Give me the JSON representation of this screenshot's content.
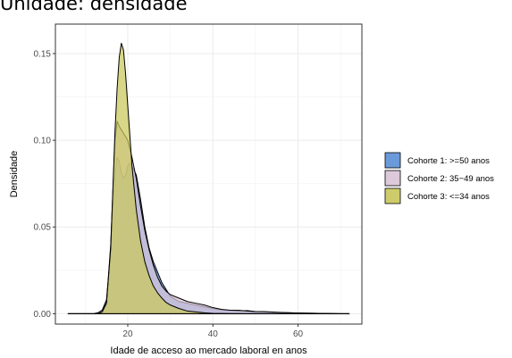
{
  "chart_data": {
    "type": "area",
    "title": "Unidade: densidade",
    "xlabel": "Idade de acceso ao mercado laboral en anos",
    "ylabel": "Densidade",
    "xlim": [
      3,
      75
    ],
    "ylim": [
      -0.006,
      0.167
    ],
    "x_ticks": [
      20,
      40,
      60
    ],
    "y_ticks": [
      0.0,
      0.05,
      0.1,
      0.15
    ],
    "y_tick_labels": [
      "0.00",
      "0.05",
      "0.10",
      "0.15"
    ],
    "grid": true,
    "legend_position": "right",
    "series": [
      {
        "name": "Cohorte 1: >=50 anos",
        "color": "#5b8fd6",
        "points": [
          [
            6,
            0
          ],
          [
            12,
            0
          ],
          [
            13,
            0.0005
          ],
          [
            14,
            0.002
          ],
          [
            15,
            0.008
          ],
          [
            16,
            0.035
          ],
          [
            16.5,
            0.06
          ],
          [
            17,
            0.08
          ],
          [
            17.5,
            0.09
          ],
          [
            18,
            0.088
          ],
          [
            18.5,
            0.081
          ],
          [
            19,
            0.078
          ],
          [
            19.5,
            0.08
          ],
          [
            20,
            0.085
          ],
          [
            20.5,
            0.087
          ],
          [
            21,
            0.085
          ],
          [
            22,
            0.08
          ],
          [
            23,
            0.066
          ],
          [
            24,
            0.05
          ],
          [
            25,
            0.038
          ],
          [
            26,
            0.03
          ],
          [
            27,
            0.024
          ],
          [
            28,
            0.018
          ],
          [
            29,
            0.014
          ],
          [
            30,
            0.01
          ],
          [
            32,
            0.007
          ],
          [
            34,
            0.006
          ],
          [
            36,
            0.005
          ],
          [
            38,
            0.004
          ],
          [
            40,
            0.003
          ],
          [
            42,
            0.0022
          ],
          [
            44,
            0.002
          ],
          [
            46,
            0.0015
          ],
          [
            48,
            0.0018
          ],
          [
            50,
            0.0012
          ],
          [
            52,
            0.001
          ],
          [
            55,
            0.0007
          ],
          [
            60,
            0.0004
          ],
          [
            65,
            0.0002
          ],
          [
            70,
            0
          ],
          [
            72,
            0
          ]
        ]
      },
      {
        "name": "Cohorte 2: 35−49 anos",
        "color": "#d8c3d6",
        "points": [
          [
            6,
            0
          ],
          [
            12,
            0
          ],
          [
            13,
            0.0005
          ],
          [
            14,
            0.002
          ],
          [
            15,
            0.006
          ],
          [
            16,
            0.04
          ],
          [
            16.5,
            0.07
          ],
          [
            17,
            0.1
          ],
          [
            17.5,
            0.111
          ],
          [
            18,
            0.108
          ],
          [
            18.5,
            0.106
          ],
          [
            19,
            0.104
          ],
          [
            20,
            0.1
          ],
          [
            21,
            0.09
          ],
          [
            22,
            0.078
          ],
          [
            23,
            0.062
          ],
          [
            24,
            0.048
          ],
          [
            25,
            0.037
          ],
          [
            26,
            0.028
          ],
          [
            27,
            0.021
          ],
          [
            28,
            0.016
          ],
          [
            29,
            0.013
          ],
          [
            30,
            0.011
          ],
          [
            32,
            0.009
          ],
          [
            34,
            0.007
          ],
          [
            36,
            0.006
          ],
          [
            38,
            0.005
          ],
          [
            40,
            0.0035
          ],
          [
            42,
            0.0025
          ],
          [
            44,
            0.002
          ],
          [
            46,
            0.002
          ],
          [
            48,
            0.0015
          ],
          [
            50,
            0.0012
          ],
          [
            52,
            0.0012
          ],
          [
            55,
            0.0008
          ],
          [
            60,
            0.0004
          ],
          [
            65,
            0.0002
          ],
          [
            70,
            0
          ],
          [
            72,
            0
          ]
        ]
      },
      {
        "name": "Cohorte 3: <=34 anos",
        "color": "#c9c75a",
        "points": [
          [
            6,
            0
          ],
          [
            13,
            0
          ],
          [
            14,
            0.001
          ],
          [
            15,
            0.006
          ],
          [
            16,
            0.038
          ],
          [
            16.5,
            0.072
          ],
          [
            17,
            0.105
          ],
          [
            17.5,
            0.13
          ],
          [
            18,
            0.148
          ],
          [
            18.5,
            0.156
          ],
          [
            19,
            0.152
          ],
          [
            19.5,
            0.138
          ],
          [
            20,
            0.12
          ],
          [
            21,
            0.085
          ],
          [
            22,
            0.06
          ],
          [
            23,
            0.042
          ],
          [
            24,
            0.03
          ],
          [
            25,
            0.022
          ],
          [
            26,
            0.016
          ],
          [
            27,
            0.012
          ],
          [
            28,
            0.009
          ],
          [
            29,
            0.0065
          ],
          [
            30,
            0.005
          ],
          [
            32,
            0.003
          ],
          [
            34,
            0.0015
          ],
          [
            36,
            0.001
          ],
          [
            38,
            0.0005
          ],
          [
            40,
            0.0002
          ],
          [
            45,
            0
          ],
          [
            72,
            0
          ]
        ]
      }
    ]
  }
}
